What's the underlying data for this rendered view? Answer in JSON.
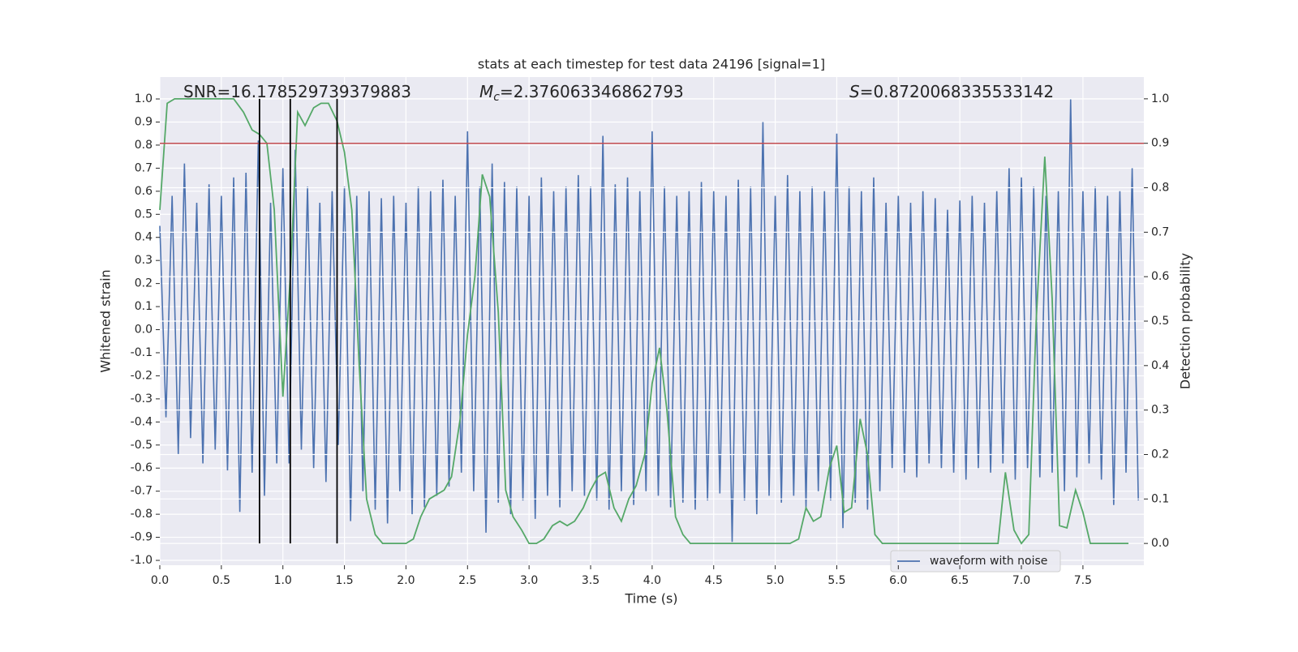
{
  "chart_data": {
    "type": "line",
    "title": "stats at each timestep for test data 24196 [signal=1]",
    "xlabel": "Time (s)",
    "ylabel": "Whitened strain",
    "y2label": "Detection probability",
    "annotations": [
      {
        "text": "SNR=16.178529739379883"
      },
      {
        "symbol": "M",
        "subscript": "c",
        "text": "=2.376063346862793"
      },
      {
        "symbol": "S",
        "text": "=0.8720068335533142"
      }
    ],
    "xlim": [
      0,
      7.995
    ],
    "ylim": [
      -1.021,
      1.095
    ],
    "y2lim": [
      -0.049,
      1.049
    ],
    "xticks": [
      {
        "value": 0,
        "label": "0.0"
      },
      0.5,
      {
        "value": 1,
        "label": "1.0"
      },
      1.5,
      {
        "value": 2,
        "label": "2.0"
      },
      2.5,
      {
        "value": 3,
        "label": "3.0"
      },
      3.5,
      {
        "value": 4,
        "label": "4.0"
      },
      4.5,
      {
        "value": 5,
        "label": "5.0"
      },
      5.5,
      {
        "value": 6,
        "label": "6.0"
      },
      6.5,
      {
        "value": 7,
        "label": "7.0"
      },
      7.5
    ],
    "yticks": [
      {
        "value": -1,
        "label": "-1.0"
      },
      -0.9,
      -0.8,
      -0.7,
      -0.6,
      -0.5,
      -0.4,
      -0.3,
      -0.2,
      -0.1,
      {
        "value": 0,
        "label": "0.0"
      },
      0.1,
      0.2,
      0.3,
      0.4,
      0.5,
      0.6,
      0.7,
      0.8,
      0.9,
      {
        "value": 1,
        "label": "1.0"
      }
    ],
    "y2ticks": [
      {
        "value": 0,
        "label": "0.0"
      },
      0.1,
      0.2,
      0.3,
      0.4,
      0.5,
      0.6,
      0.7,
      0.8,
      0.9,
      {
        "value": 1,
        "label": "1.0"
      }
    ],
    "grid": true,
    "legend": "lower right",
    "threshold": {
      "value": 0.9,
      "axis": "y2",
      "color": "#c44e52"
    },
    "vlines": {
      "x": [
        0.81,
        1.06,
        1.44
      ],
      "ymin": 0,
      "ymax": 1,
      "axis": "y2",
      "color": "#000000"
    },
    "series": [
      {
        "name": "waveform with noise",
        "color": "#4c72b0",
        "x": [
          0,
          0.05,
          0.1,
          0.15,
          0.2,
          0.25,
          0.3,
          0.35,
          0.4,
          0.45,
          0.5,
          0.55,
          0.6,
          0.65,
          0.7,
          0.75,
          0.8,
          0.85,
          0.9,
          0.95,
          1,
          1.05,
          1.1,
          1.15,
          1.2,
          1.25,
          1.3,
          1.35,
          1.4,
          1.45,
          1.5,
          1.55,
          1.6,
          1.65,
          1.7,
          1.75,
          1.8,
          1.85,
          1.9,
          1.95,
          2,
          2.05,
          2.1,
          2.15,
          2.2,
          2.25,
          2.3,
          2.35,
          2.4,
          2.45,
          2.5,
          2.55,
          2.6,
          2.65,
          2.7,
          2.75,
          2.8,
          2.85,
          2.9,
          2.95,
          3,
          3.05,
          3.1,
          3.15,
          3.2,
          3.25,
          3.3,
          3.35,
          3.4,
          3.45,
          3.5,
          3.55,
          3.6,
          3.65,
          3.7,
          3.75,
          3.8,
          3.85,
          3.9,
          3.95,
          4,
          4.05,
          4.1,
          4.15,
          4.2,
          4.25,
          4.3,
          4.35,
          4.4,
          4.45,
          4.5,
          4.55,
          4.6,
          4.65,
          4.7,
          4.75,
          4.8,
          4.85,
          4.9,
          4.95,
          5,
          5.05,
          5.1,
          5.15,
          5.2,
          5.25,
          5.3,
          5.35,
          5.4,
          5.45,
          5.5,
          5.55,
          5.6,
          5.65,
          5.7,
          5.75,
          5.8,
          5.85,
          5.9,
          5.95,
          6,
          6.05,
          6.1,
          6.15,
          6.2,
          6.25,
          6.3,
          6.35,
          6.4,
          6.45,
          6.5,
          6.55,
          6.6,
          6.65,
          6.7,
          6.75,
          6.8,
          6.85,
          6.9,
          6.95,
          7,
          7.05,
          7.1,
          7.15,
          7.2,
          7.25,
          7.3,
          7.35,
          7.4,
          7.45,
          7.5,
          7.55,
          7.6,
          7.65,
          7.7,
          7.75,
          7.8,
          7.85,
          7.9,
          7.95
        ],
        "values": [
          0.45,
          -0.38,
          0.58,
          -0.54,
          0.72,
          -0.47,
          0.55,
          -0.58,
          0.63,
          -0.52,
          0.58,
          -0.61,
          0.66,
          -0.79,
          0.68,
          -0.62,
          0.82,
          -0.72,
          0.55,
          -0.58,
          0.7,
          -0.58,
          0.78,
          -0.52,
          0.62,
          -0.6,
          0.55,
          -0.66,
          0.6,
          -0.5,
          0.62,
          -0.83,
          0.58,
          -0.7,
          0.6,
          -0.78,
          0.57,
          -0.84,
          0.58,
          -0.7,
          0.55,
          -0.8,
          0.62,
          -0.77,
          0.6,
          -0.72,
          0.65,
          -0.68,
          0.58,
          -0.62,
          0.86,
          -0.7,
          0.62,
          -0.88,
          0.72,
          -0.75,
          0.64,
          -0.8,
          0.62,
          -0.74,
          0.58,
          -0.82,
          0.66,
          -0.72,
          0.6,
          -0.77,
          0.62,
          -0.7,
          0.67,
          -0.72,
          0.62,
          -0.74,
          0.84,
          -0.78,
          0.63,
          -0.7,
          0.66,
          -0.76,
          0.6,
          -0.7,
          0.86,
          -0.72,
          0.62,
          -0.77,
          0.58,
          -0.75,
          0.6,
          -0.78,
          0.64,
          -0.74,
          0.6,
          -0.71,
          0.58,
          -0.92,
          0.65,
          -0.74,
          0.62,
          -0.8,
          0.9,
          -0.72,
          0.58,
          -0.75,
          0.67,
          -0.72,
          0.6,
          -0.77,
          0.62,
          -0.7,
          0.6,
          -0.74,
          0.85,
          -0.86,
          0.62,
          -0.75,
          0.6,
          -0.78,
          0.66,
          -0.7,
          0.55,
          -0.6,
          0.58,
          -0.62,
          0.55,
          -0.64,
          0.6,
          -0.58,
          0.57,
          -0.6,
          0.52,
          -0.62,
          0.56,
          -0.65,
          0.58,
          -0.6,
          0.55,
          -0.62,
          0.6,
          -0.58,
          0.7,
          -0.65,
          0.66,
          -0.6,
          0.62,
          -0.64,
          0.58,
          -0.62,
          0.6,
          -0.7,
          1.0,
          -0.64,
          0.6,
          -0.58,
          0.62,
          -0.65,
          0.58,
          -0.76,
          0.6,
          -0.62,
          0.7,
          -0.74
        ]
      },
      {
        "color": "#55a868",
        "axis": "y2",
        "x": [
          0,
          0.06,
          0.12,
          0.6,
          0.68,
          0.75,
          0.81,
          0.87,
          0.93,
          1.0,
          1.06,
          1.12,
          1.18,
          1.25,
          1.31,
          1.37,
          1.44,
          1.5,
          1.56,
          1.62,
          1.68,
          1.75,
          1.81,
          1.87,
          1.94,
          2.0,
          2.06,
          2.12,
          2.19,
          2.25,
          2.31,
          2.37,
          2.44,
          2.5,
          2.56,
          2.62,
          2.68,
          2.75,
          2.81,
          2.87,
          2.94,
          3.0,
          3.06,
          3.12,
          3.19,
          3.25,
          3.31,
          3.37,
          3.44,
          3.5,
          3.56,
          3.62,
          3.69,
          3.75,
          3.81,
          3.87,
          3.94,
          4.0,
          4.06,
          4.12,
          4.19,
          4.25,
          4.31,
          5.12,
          5.19,
          5.25,
          5.31,
          5.37,
          5.44,
          5.5,
          5.56,
          5.62,
          5.69,
          5.75,
          5.81,
          5.87,
          6.81,
          6.87,
          6.94,
          7.0,
          7.06,
          7.12,
          7.19,
          7.25,
          7.31,
          7.37,
          7.44,
          7.5,
          7.56,
          7.62,
          7.87
        ],
        "values": [
          0.75,
          0.99,
          1.0,
          1.0,
          0.97,
          0.93,
          0.92,
          0.9,
          0.75,
          0.33,
          0.6,
          0.97,
          0.94,
          0.98,
          0.99,
          0.99,
          0.95,
          0.88,
          0.75,
          0.4,
          0.1,
          0.02,
          0.0,
          0.0,
          0.0,
          0.0,
          0.01,
          0.06,
          0.1,
          0.11,
          0.12,
          0.15,
          0.28,
          0.47,
          0.6,
          0.83,
          0.78,
          0.52,
          0.12,
          0.06,
          0.03,
          0.0,
          0.0,
          0.01,
          0.04,
          0.05,
          0.04,
          0.05,
          0.08,
          0.12,
          0.15,
          0.16,
          0.08,
          0.05,
          0.1,
          0.13,
          0.2,
          0.36,
          0.44,
          0.3,
          0.06,
          0.02,
          0.0,
          0.0,
          0.01,
          0.08,
          0.05,
          0.06,
          0.17,
          0.22,
          0.07,
          0.08,
          0.28,
          0.2,
          0.02,
          0.0,
          0.0,
          0.16,
          0.03,
          0.0,
          0.02,
          0.5,
          0.87,
          0.55,
          0.04,
          0.035,
          0.12,
          0.07,
          0.0,
          0.0,
          0.0
        ]
      }
    ]
  }
}
